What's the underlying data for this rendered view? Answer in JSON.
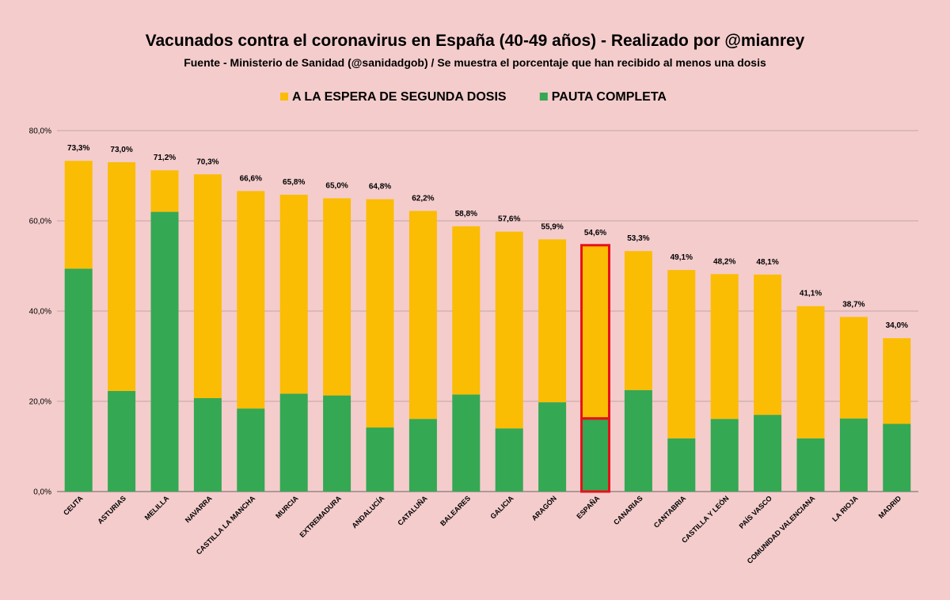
{
  "chart_data": {
    "type": "bar",
    "stacked": true,
    "title": "Vacunados contra el coronavirus en España (40-49 años) - Realizado por @mianrey",
    "subtitle": "Fuente - Ministerio de Sanidad (@sanidadgob) / Se muestra el porcentaje que han recibido al menos una dosis",
    "categories": [
      "CEUTA",
      "ASTURIAS",
      "MELILLA",
      "NAVARRA",
      "CASTILLA LA MANCHA",
      "MURCIA",
      "EXTREMADURA",
      "ANDALUCÍA",
      "CATALUÑA",
      "BALEARES",
      "GALICIA",
      "ARAGÓN",
      "ESPAÑA",
      "CANARIAS",
      "CANTABRIA",
      "CASTILLA Y LEÓN",
      "PAÍS VASCO",
      "COMUNIDAD VALENCIANA",
      "LA RIOJA",
      "MADRID"
    ],
    "series": [
      {
        "name": "PAUTA COMPLETA",
        "color": "#34a853",
        "values": [
          49.4,
          22.3,
          62.0,
          20.7,
          18.4,
          21.7,
          21.3,
          14.2,
          16.1,
          21.5,
          14.0,
          19.8,
          16.2,
          22.5,
          11.8,
          16.1,
          17.0,
          11.8,
          16.2,
          15.0
        ]
      },
      {
        "name": "A LA ESPERA DE SEGUNDA DOSIS",
        "color": "#fbbc04",
        "values": [
          23.9,
          50.7,
          9.2,
          49.6,
          48.2,
          44.1,
          43.7,
          50.6,
          46.1,
          37.3,
          43.6,
          36.1,
          38.4,
          30.8,
          37.3,
          32.1,
          31.1,
          29.3,
          22.5,
          19.0
        ]
      }
    ],
    "totals": [
      73.3,
      73.0,
      71.2,
      70.3,
      66.6,
      65.8,
      65.0,
      64.8,
      62.2,
      58.8,
      57.6,
      55.9,
      54.6,
      53.3,
      49.1,
      48.2,
      48.1,
      41.1,
      38.7,
      34.0
    ],
    "data_labels": [
      "73,3%",
      "73,0%",
      "71,2%",
      "70,3%",
      "66,6%",
      "65,8%",
      "65,0%",
      "64,8%",
      "62,2%",
      "58,8%",
      "57,6%",
      "55,9%",
      "54,6%",
      "53,3%",
      "49,1%",
      "48,2%",
      "48,1%",
      "41,1%",
      "38,7%",
      "34,0%"
    ],
    "ylim": [
      0,
      80
    ],
    "yticks": [
      0,
      20,
      40,
      60,
      80
    ],
    "ytick_labels": [
      "0,0%",
      "20,0%",
      "40,0%",
      "60,0%",
      "80,0%"
    ],
    "legend": {
      "position": "top",
      "items": [
        {
          "label": "A LA ESPERA DE SEGUNDA DOSIS",
          "color": "#fbbc04"
        },
        {
          "label": "PAUTA COMPLETA",
          "color": "#34a853"
        }
      ]
    },
    "highlight": {
      "category": "ESPAÑA",
      "color": "#e8101a"
    },
    "grid": true,
    "gridline_color": "#c4a3a3",
    "background_color": "#f4cccc"
  }
}
